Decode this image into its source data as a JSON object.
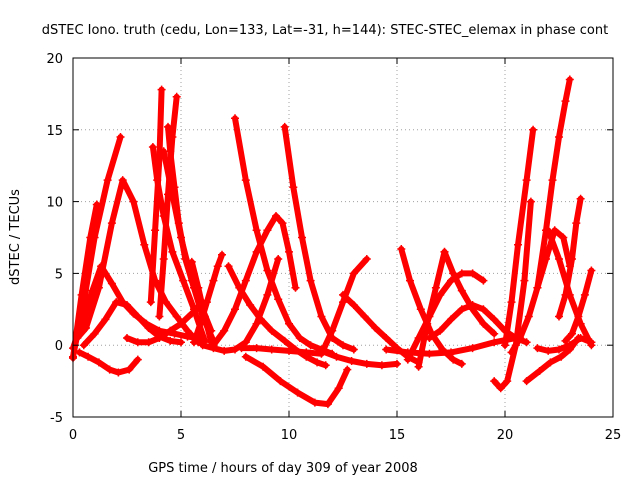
{
  "chart_data": {
    "type": "scatter",
    "title": "dSTEC Iono. truth (cedu, Lon=133, Lat=-31, h=144): STEC-STEC_elemax in phase cont",
    "xlabel": "GPS time / hours of day 309 of year 2008",
    "ylabel": "dSTEC  / TECUs",
    "xlim": [
      0,
      25
    ],
    "ylim": [
      -5,
      20
    ],
    "xticks": [
      0,
      5,
      10,
      15,
      20,
      25
    ],
    "yticks": [
      -5,
      0,
      5,
      10,
      15,
      20
    ],
    "grid": true,
    "marker": "plus",
    "color": "#ff0000",
    "series": [
      {
        "x": [
          0.0,
          0.5,
          1.0,
          1.6,
          2.2
        ],
        "y": [
          -0.8,
          3.0,
          7.5,
          11.5,
          14.5
        ]
      },
      {
        "x": [
          0.0,
          0.4,
          0.8,
          1.1
        ],
        "y": [
          -0.9,
          3.5,
          7.5,
          9.8
        ]
      },
      {
        "x": [
          0.0,
          0.4,
          0.9,
          1.3,
          1.8,
          2.3,
          2.8,
          3.4,
          4.0,
          4.7,
          5.3,
          5.9
        ],
        "y": [
          -0.2,
          1.5,
          3.8,
          5.5,
          4.3,
          3.0,
          2.2,
          1.5,
          1.0,
          0.8,
          0.6,
          0.5
        ]
      },
      {
        "x": [
          0.2,
          0.6,
          1.2,
          1.8,
          2.3,
          2.8,
          3.3,
          3.8,
          4.3,
          4.8,
          5.3,
          5.8
        ],
        "y": [
          0.5,
          1.2,
          4.0,
          8.5,
          11.5,
          10.0,
          7.0,
          4.5,
          3.0,
          2.0,
          1.0,
          0.2
        ]
      },
      {
        "x": [
          0.3,
          0.7,
          1.2,
          1.7,
          2.1,
          2.6,
          3.0
        ],
        "y": [
          -0.5,
          -0.8,
          -1.2,
          -1.7,
          -1.9,
          -1.7,
          -1.0
        ]
      },
      {
        "x": [
          0.5,
          1.0,
          1.5,
          2.0,
          2.5,
          3.0,
          3.5,
          4.0,
          4.5,
          5.0
        ],
        "y": [
          0.0,
          0.8,
          1.8,
          3.0,
          2.8,
          2.0,
          1.2,
          0.6,
          0.3,
          0.2
        ]
      },
      {
        "x": [
          2.5,
          3.0,
          3.5,
          4.0,
          4.5,
          5.0,
          5.5,
          6.0
        ],
        "y": [
          0.5,
          0.2,
          0.2,
          0.5,
          1.0,
          1.5,
          2.2,
          3.0
        ]
      },
      {
        "x": [
          3.6,
          3.8,
          4.0,
          4.1
        ],
        "y": [
          3.0,
          8.0,
          13.0,
          17.8
        ]
      },
      {
        "x": [
          3.7,
          3.9,
          4.2,
          4.6,
          5.1,
          5.6,
          6.1
        ],
        "y": [
          13.8,
          11.5,
          9.0,
          6.5,
          4.5,
          2.5,
          0.3
        ]
      },
      {
        "x": [
          4.0,
          4.2,
          4.4,
          4.6,
          4.8
        ],
        "y": [
          2.0,
          6.0,
          10.5,
          14.5,
          17.3
        ]
      },
      {
        "x": [
          4.2,
          4.6,
          5.0,
          5.5,
          6.0,
          6.5
        ],
        "y": [
          13.5,
          10.5,
          7.5,
          4.5,
          2.0,
          0.3
        ]
      },
      {
        "x": [
          4.4,
          4.5,
          4.7,
          4.9,
          5.2,
          5.6,
          6.0,
          6.4
        ],
        "y": [
          15.2,
          13.5,
          11.0,
          8.5,
          6.0,
          4.0,
          2.5,
          1.0
        ]
      },
      {
        "x": [
          5.6,
          5.9,
          6.2,
          6.5,
          6.7,
          6.9
        ],
        "y": [
          0.2,
          1.5,
          3.0,
          4.5,
          5.5,
          6.3
        ]
      },
      {
        "x": [
          5.5,
          5.8,
          6.1,
          6.4
        ],
        "y": [
          5.8,
          4.0,
          2.0,
          0.2
        ]
      },
      {
        "x": [
          6.0,
          6.5,
          7.0,
          7.5,
          8.0,
          8.5,
          9.0,
          9.5
        ],
        "y": [
          0.0,
          -0.2,
          -0.4,
          -0.3,
          0.2,
          1.5,
          3.5,
          6.0
        ]
      },
      {
        "x": [
          6.5,
          7.0,
          7.5,
          8.0,
          8.5,
          9.0,
          9.4,
          9.7,
          10.0,
          10.3
        ],
        "y": [
          0.0,
          1.0,
          2.5,
          4.5,
          6.5,
          8.0,
          9.0,
          8.5,
          6.5,
          4.0
        ]
      },
      {
        "x": [
          7.5,
          8.0,
          8.5,
          9.0,
          9.5,
          10.0,
          10.5,
          11.0,
          11.5,
          12.0
        ],
        "y": [
          15.8,
          11.5,
          8.0,
          5.2,
          3.2,
          1.5,
          0.5,
          0.0,
          -0.3,
          -0.6
        ]
      },
      {
        "x": [
          7.2,
          7.7,
          8.2,
          8.7,
          9.2,
          9.8,
          10.3,
          10.8,
          11.3,
          11.7
        ],
        "y": [
          5.5,
          4.0,
          2.8,
          1.8,
          1.0,
          0.3,
          -0.3,
          -0.8,
          -1.2,
          -1.4
        ]
      },
      {
        "x": [
          9.8,
          10.2,
          10.6,
          11.0,
          11.5,
          12.0,
          12.5,
          13.0
        ],
        "y": [
          15.2,
          11.0,
          7.5,
          4.5,
          2.0,
          0.5,
          0.0,
          -0.3
        ]
      },
      {
        "x": [
          8.0,
          8.8,
          9.6,
          10.4,
          11.2,
          11.8,
          12.3,
          12.7
        ],
        "y": [
          -0.8,
          -1.5,
          -2.5,
          -3.3,
          -4.0,
          -4.1,
          -3.0,
          -1.7
        ]
      },
      {
        "x": [
          7.8,
          8.5,
          9.2,
          10.0,
          10.8,
          11.5,
          12.0,
          12.5,
          13.0,
          13.6
        ],
        "y": [
          -0.2,
          -0.2,
          -0.3,
          -0.4,
          -0.5,
          -0.6,
          1.0,
          3.0,
          5.0,
          6.0
        ]
      },
      {
        "x": [
          11.5,
          12.2,
          12.9,
          13.6,
          14.3,
          15.0
        ],
        "y": [
          -0.4,
          -0.8,
          -1.1,
          -1.3,
          -1.4,
          -1.3
        ]
      },
      {
        "x": [
          12.5,
          13.0,
          13.5,
          14.0,
          14.5,
          15.0,
          15.5,
          16.0
        ],
        "y": [
          3.5,
          2.8,
          2.0,
          1.2,
          0.5,
          -0.2,
          -0.8,
          -1.2
        ]
      },
      {
        "x": [
          15.2,
          15.6,
          16.1,
          16.6,
          17.1,
          17.6,
          18.0
        ],
        "y": [
          6.7,
          4.5,
          2.5,
          0.8,
          -0.3,
          -1.0,
          -1.3
        ]
      },
      {
        "x": [
          15.5,
          16.0,
          16.5,
          17.0,
          17.5,
          18.0,
          18.5,
          19.0
        ],
        "y": [
          -1.0,
          0.5,
          2.0,
          3.5,
          4.5,
          5.0,
          5.0,
          4.5
        ]
      },
      {
        "x": [
          16.0,
          16.4,
          16.8,
          17.2
        ],
        "y": [
          -1.5,
          1.5,
          4.0,
          6.5
        ]
      },
      {
        "x": [
          17.2,
          17.6,
          18.0,
          18.5,
          19.0,
          19.5
        ],
        "y": [
          6.5,
          5.0,
          3.8,
          2.5,
          1.5,
          0.8
        ]
      },
      {
        "x": [
          16.5,
          17.0,
          17.5,
          18.0,
          18.5,
          19.0,
          19.5,
          20.0,
          20.5,
          21.0
        ],
        "y": [
          0.5,
          1.0,
          1.8,
          2.5,
          2.8,
          2.5,
          1.8,
          1.0,
          0.5,
          0.2
        ]
      },
      {
        "x": [
          14.5,
          15.5,
          16.5,
          17.5,
          18.5,
          19.5,
          20.5
        ],
        "y": [
          -0.3,
          -0.5,
          -0.6,
          -0.5,
          -0.2,
          0.2,
          0.5
        ]
      },
      {
        "x": [
          19.5,
          19.8,
          20.1,
          20.5,
          20.9,
          21.2
        ],
        "y": [
          -2.5,
          -3.0,
          -2.5,
          0.0,
          4.5,
          10.0
        ]
      },
      {
        "x": [
          20.0,
          20.3,
          20.6,
          21.0,
          21.3
        ],
        "y": [
          0.0,
          3.0,
          7.0,
          11.5,
          15.0
        ]
      },
      {
        "x": [
          20.3,
          20.7,
          21.1,
          21.5,
          21.9,
          22.3,
          22.7,
          23.0
        ],
        "y": [
          -0.5,
          0.5,
          2.0,
          4.0,
          6.0,
          8.0,
          7.5,
          5.5
        ]
      },
      {
        "x": [
          21.5,
          21.9,
          22.2,
          22.5,
          22.8,
          23.0
        ],
        "y": [
          4.0,
          8.0,
          11.5,
          14.5,
          17.0,
          18.5
        ]
      },
      {
        "x": [
          21.0,
          21.6,
          22.1,
          22.6,
          23.0,
          23.4
        ],
        "y": [
          -2.5,
          -1.8,
          -1.2,
          -0.8,
          -0.3,
          0.5
        ]
      },
      {
        "x": [
          22.5,
          22.8,
          23.1,
          23.3,
          23.5
        ],
        "y": [
          2.0,
          3.5,
          6.0,
          8.5,
          10.2
        ]
      },
      {
        "x": [
          22.0,
          22.5,
          23.0,
          23.5,
          24.0
        ],
        "y": [
          8.0,
          6.0,
          3.5,
          1.5,
          0.0
        ]
      },
      {
        "x": [
          22.8,
          23.1,
          23.4,
          23.7,
          24.0
        ],
        "y": [
          0.3,
          0.8,
          2.0,
          3.5,
          5.2
        ]
      },
      {
        "x": [
          21.5,
          22.0,
          22.5,
          23.0,
          23.5,
          24.0
        ],
        "y": [
          -0.2,
          -0.4,
          -0.3,
          0.0,
          0.5,
          0.2
        ]
      }
    ]
  }
}
